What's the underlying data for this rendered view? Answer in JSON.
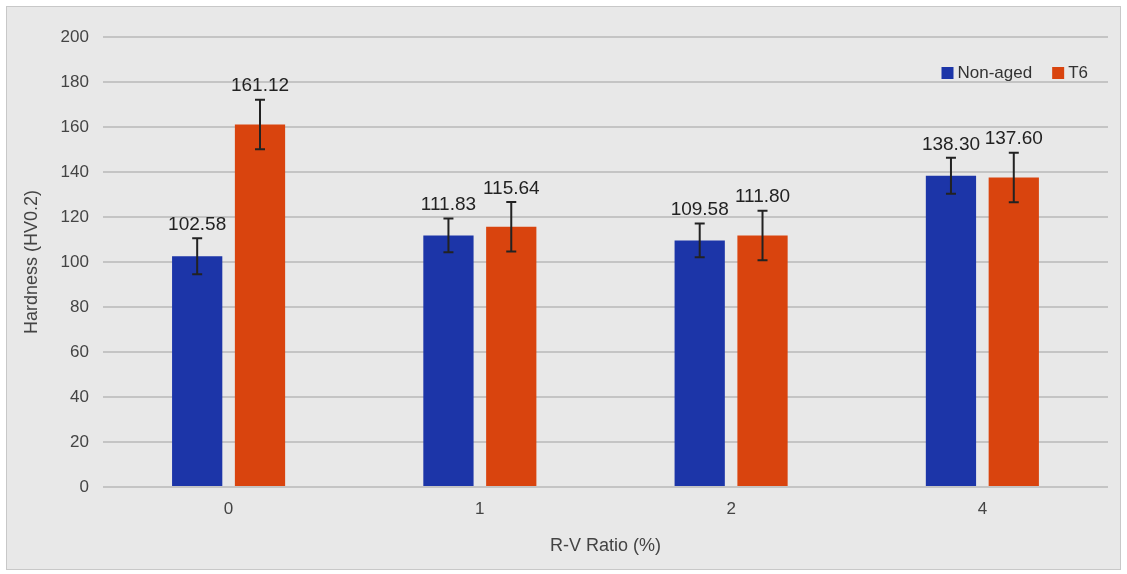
{
  "chart_data": {
    "type": "bar",
    "xlabel": "R-V Ratio (%)",
    "ylabel": "Hardness (HV0.2)",
    "categories": [
      "0",
      "1",
      "2",
      "4"
    ],
    "series": [
      {
        "name": "Non-aged",
        "color": "#1c35a8",
        "values": [
          102.58,
          111.83,
          109.58,
          138.3
        ],
        "errors": [
          8,
          7.5,
          7.5,
          8
        ],
        "value_labels": [
          "102.58",
          "111.83",
          "109.58",
          "138.30"
        ]
      },
      {
        "name": "T6",
        "color": "#d9440e",
        "values": [
          161.12,
          115.64,
          111.8,
          137.6
        ],
        "errors": [
          11,
          11,
          11,
          11
        ],
        "value_labels": [
          "161.12",
          "115.64",
          "111.80",
          "137.60"
        ]
      }
    ],
    "ylim": [
      0,
      200
    ],
    "yticks": [
      0,
      20,
      40,
      60,
      80,
      100,
      120,
      140,
      160,
      180,
      200
    ],
    "grid": "y",
    "legend": "top right"
  }
}
